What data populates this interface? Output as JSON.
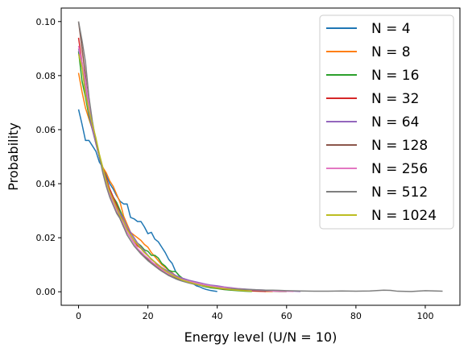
{
  "chart_data": {
    "type": "line",
    "title": "",
    "xlabel": "Energy level (U/N = 10)",
    "ylabel": "Probability",
    "xlim": [
      -5,
      110
    ],
    "ylim": [
      -0.005,
      0.105
    ],
    "xticks": [
      0,
      20,
      40,
      60,
      80,
      100
    ],
    "yticks": [
      0.0,
      0.02,
      0.04,
      0.06,
      0.08,
      0.1
    ],
    "xtick_labels": [
      "0",
      "20",
      "40",
      "60",
      "80",
      "100"
    ],
    "ytick_labels": [
      "0.00",
      "0.02",
      "0.04",
      "0.06",
      "0.08",
      "0.10"
    ],
    "grid": false,
    "legend_position": "top-right",
    "series": [
      {
        "name": "N = 4",
        "color": "#1f77b4",
        "x": [
          0,
          1,
          2,
          3,
          4,
          5,
          6,
          7,
          8,
          9,
          10,
          11,
          12,
          13,
          14,
          15,
          16,
          17,
          18,
          19,
          20,
          21,
          22,
          23,
          24,
          25,
          26,
          27,
          28,
          29,
          30,
          31,
          32,
          33,
          34,
          35,
          36,
          37,
          38,
          39,
          40
        ],
        "y": [
          0.0675,
          0.062,
          0.056,
          0.056,
          0.054,
          0.052,
          0.048,
          0.046,
          0.043,
          0.04,
          0.038,
          0.0355,
          0.0335,
          0.0325,
          0.0325,
          0.0275,
          0.027,
          0.026,
          0.026,
          0.024,
          0.0215,
          0.022,
          0.0195,
          0.0185,
          0.0165,
          0.0145,
          0.012,
          0.0105,
          0.0075,
          0.006,
          0.0045,
          0.0045,
          0.0035,
          0.003,
          0.0022,
          0.0018,
          0.0012,
          0.0008,
          0.0005,
          0.0003,
          0.0001
        ]
      },
      {
        "name": "N = 8",
        "color": "#ff7f0e",
        "x": [
          0,
          1,
          2,
          3,
          4,
          5,
          6,
          7,
          8,
          9,
          10,
          11,
          12,
          13,
          14,
          15,
          16,
          17,
          18,
          19,
          20,
          21,
          22,
          23,
          24,
          25,
          26,
          27,
          28,
          29,
          30,
          31,
          32,
          33,
          34,
          35,
          36,
          38,
          40,
          42,
          44,
          46,
          48,
          50,
          52,
          54,
          56
        ],
        "y": [
          0.081,
          0.074,
          0.068,
          0.064,
          0.06,
          0.055,
          0.05,
          0.046,
          0.044,
          0.041,
          0.039,
          0.036,
          0.033,
          0.028,
          0.025,
          0.022,
          0.021,
          0.02,
          0.019,
          0.0175,
          0.0165,
          0.0145,
          0.013,
          0.0115,
          0.01,
          0.009,
          0.008,
          0.007,
          0.006,
          0.005,
          0.0045,
          0.004,
          0.0035,
          0.003,
          0.0028,
          0.0025,
          0.0022,
          0.0018,
          0.0014,
          0.001,
          0.0008,
          0.0006,
          0.0005,
          0.0003,
          0.0002,
          0.0001,
          0.0001
        ]
      },
      {
        "name": "N = 16",
        "color": "#2ca02c",
        "x": [
          0,
          1,
          2,
          3,
          4,
          5,
          6,
          7,
          8,
          9,
          10,
          11,
          12,
          13,
          14,
          15,
          16,
          17,
          18,
          19,
          20,
          21,
          22,
          23,
          24,
          25,
          26,
          27,
          28,
          29,
          30,
          31,
          32,
          33,
          34,
          35,
          36,
          38,
          40,
          42,
          44,
          46,
          48,
          50
        ],
        "y": [
          0.089,
          0.078,
          0.072,
          0.065,
          0.06,
          0.055,
          0.05,
          0.045,
          0.041,
          0.038,
          0.035,
          0.033,
          0.03,
          0.027,
          0.024,
          0.022,
          0.02,
          0.018,
          0.017,
          0.0155,
          0.015,
          0.0135,
          0.0135,
          0.0125,
          0.0105,
          0.0095,
          0.008,
          0.0075,
          0.0075,
          0.006,
          0.005,
          0.0045,
          0.004,
          0.0035,
          0.003,
          0.0025,
          0.002,
          0.0015,
          0.0012,
          0.0008,
          0.0006,
          0.0004,
          0.0002,
          0.0001
        ]
      },
      {
        "name": "N = 32",
        "color": "#d62728",
        "x": [
          0,
          1,
          2,
          3,
          4,
          5,
          6,
          7,
          8,
          9,
          10,
          11,
          12,
          13,
          14,
          15,
          16,
          17,
          18,
          19,
          20,
          21,
          22,
          23,
          24,
          25,
          26,
          27,
          28,
          29,
          30,
          31,
          32,
          33,
          34,
          35,
          36,
          38,
          40,
          42,
          44,
          46,
          48,
          50,
          52,
          54
        ],
        "y": [
          0.094,
          0.085,
          0.074,
          0.067,
          0.061,
          0.055,
          0.05,
          0.046,
          0.042,
          0.038,
          0.035,
          0.032,
          0.029,
          0.026,
          0.024,
          0.021,
          0.019,
          0.017,
          0.016,
          0.0145,
          0.0135,
          0.012,
          0.011,
          0.0095,
          0.0085,
          0.0075,
          0.0068,
          0.0062,
          0.0055,
          0.005,
          0.0045,
          0.004,
          0.0035,
          0.0032,
          0.0028,
          0.0025,
          0.0022,
          0.0018,
          0.0014,
          0.001,
          0.0008,
          0.0006,
          0.0004,
          0.0003,
          0.0002,
          0.0001
        ]
      },
      {
        "name": "N = 64",
        "color": "#9467bd",
        "x": [
          0,
          1,
          2,
          3,
          4,
          5,
          6,
          7,
          8,
          9,
          10,
          11,
          12,
          13,
          14,
          15,
          16,
          17,
          18,
          19,
          20,
          21,
          22,
          23,
          24,
          25,
          26,
          27,
          28,
          29,
          30,
          32,
          34,
          36,
          38,
          40,
          42,
          44,
          46,
          48,
          50,
          52,
          54,
          56,
          58,
          60,
          62,
          64
        ],
        "y": [
          0.09,
          0.083,
          0.075,
          0.066,
          0.06,
          0.055,
          0.05,
          0.045,
          0.041,
          0.037,
          0.034,
          0.031,
          0.029,
          0.027,
          0.024,
          0.022,
          0.02,
          0.018,
          0.0165,
          0.015,
          0.0135,
          0.012,
          0.011,
          0.01,
          0.009,
          0.0082,
          0.0075,
          0.0068,
          0.006,
          0.0055,
          0.005,
          0.0042,
          0.0036,
          0.003,
          0.0025,
          0.0022,
          0.0018,
          0.0015,
          0.0012,
          0.001,
          0.0008,
          0.0007,
          0.0006,
          0.0004,
          0.0003,
          0.0002,
          0.0002,
          0.0001
        ]
      },
      {
        "name": "N = 128",
        "color": "#8c564b",
        "x": [
          0,
          1,
          2,
          3,
          4,
          5,
          6,
          7,
          8,
          9,
          10,
          11,
          12,
          13,
          14,
          15,
          16,
          17,
          18,
          19,
          20,
          21,
          22,
          23,
          24,
          25,
          26,
          27,
          28,
          29,
          30,
          32,
          34,
          36,
          38,
          40,
          42,
          44,
          46,
          48,
          50,
          52,
          54,
          56,
          58,
          60
        ],
        "y": [
          0.1,
          0.09,
          0.08,
          0.068,
          0.062,
          0.056,
          0.05,
          0.045,
          0.04,
          0.036,
          0.033,
          0.03,
          0.027,
          0.024,
          0.022,
          0.02,
          0.018,
          0.016,
          0.0145,
          0.013,
          0.012,
          0.011,
          0.0098,
          0.0088,
          0.0078,
          0.007,
          0.0062,
          0.0056,
          0.005,
          0.0045,
          0.004,
          0.0033,
          0.0028,
          0.0023,
          0.0019,
          0.0016,
          0.0013,
          0.001,
          0.0008,
          0.0006,
          0.0005,
          0.0004,
          0.0003,
          0.0002,
          0.0001,
          0.0001
        ]
      },
      {
        "name": "N = 256",
        "color": "#e377c2",
        "x": [
          0,
          1,
          2,
          3,
          4,
          5,
          6,
          7,
          8,
          9,
          10,
          11,
          12,
          13,
          14,
          15,
          16,
          17,
          18,
          19,
          20,
          21,
          22,
          23,
          24,
          25,
          26,
          27,
          28,
          29,
          30,
          32,
          34,
          36,
          38,
          40,
          42,
          44,
          46,
          48,
          50,
          52,
          54,
          56,
          58,
          60,
          62
        ],
        "y": [
          0.091,
          0.085,
          0.078,
          0.069,
          0.062,
          0.056,
          0.05,
          0.045,
          0.04,
          0.036,
          0.033,
          0.03,
          0.028,
          0.025,
          0.022,
          0.02,
          0.018,
          0.016,
          0.0148,
          0.0135,
          0.0125,
          0.0112,
          0.0102,
          0.0092,
          0.0082,
          0.0074,
          0.0066,
          0.006,
          0.0055,
          0.005,
          0.0045,
          0.0038,
          0.0032,
          0.0027,
          0.0022,
          0.0018,
          0.0016,
          0.0013,
          0.0011,
          0.0009,
          0.0007,
          0.0006,
          0.0005,
          0.0003,
          0.0002,
          0.0002,
          0.0001
        ]
      },
      {
        "name": "N = 512",
        "color": "#7f7f7f",
        "x": [
          0,
          1,
          2,
          3,
          4,
          5,
          6,
          7,
          8,
          9,
          10,
          11,
          12,
          13,
          14,
          15,
          16,
          17,
          18,
          19,
          20,
          21,
          22,
          23,
          24,
          25,
          26,
          27,
          28,
          29,
          30,
          32,
          34,
          36,
          38,
          40,
          42,
          44,
          46,
          48,
          50,
          52,
          54,
          56,
          58,
          60,
          64,
          68,
          72,
          76,
          80,
          84,
          88,
          90,
          92,
          96,
          100,
          105
        ],
        "y": [
          0.1,
          0.093,
          0.085,
          0.072,
          0.063,
          0.056,
          0.05,
          0.044,
          0.039,
          0.035,
          0.032,
          0.029,
          0.027,
          0.024,
          0.021,
          0.019,
          0.017,
          0.0155,
          0.014,
          0.0128,
          0.0115,
          0.0105,
          0.0095,
          0.0085,
          0.0076,
          0.0068,
          0.006,
          0.0054,
          0.0048,
          0.0043,
          0.0039,
          0.0032,
          0.0026,
          0.0022,
          0.0018,
          0.0015,
          0.0012,
          0.0011,
          0.001,
          0.0009,
          0.0008,
          0.0007,
          0.0006,
          0.0006,
          0.0005,
          0.0004,
          0.0003,
          0.0002,
          0.0002,
          0.0003,
          0.0002,
          0.0003,
          0.0006,
          0.0005,
          0.0002,
          0.0001,
          0.0004,
          0.0002
        ]
      },
      {
        "name": "N = 1024",
        "color": "#bcbd22",
        "x": [
          0,
          1,
          2,
          3,
          4,
          5,
          6,
          7,
          8,
          9,
          10,
          11,
          12,
          13,
          14,
          15,
          16,
          17,
          18,
          19,
          20,
          21,
          22,
          23,
          24,
          25,
          26,
          27,
          28,
          29,
          30,
          32,
          34,
          36,
          38,
          40,
          42,
          44,
          46,
          48,
          50
        ],
        "y": [
          0.088,
          0.083,
          0.073,
          0.067,
          0.062,
          0.057,
          0.051,
          0.046,
          0.041,
          0.037,
          0.034,
          0.031,
          0.028,
          0.026,
          0.023,
          0.021,
          0.019,
          0.0175,
          0.016,
          0.0145,
          0.0133,
          0.0122,
          0.011,
          0.0098,
          0.0088,
          0.0078,
          0.007,
          0.0062,
          0.0055,
          0.0049,
          0.0043,
          0.0035,
          0.0028,
          0.0022,
          0.0018,
          0.0014,
          0.0011,
          0.0008,
          0.0006,
          0.0004,
          0.0002
        ]
      }
    ]
  }
}
